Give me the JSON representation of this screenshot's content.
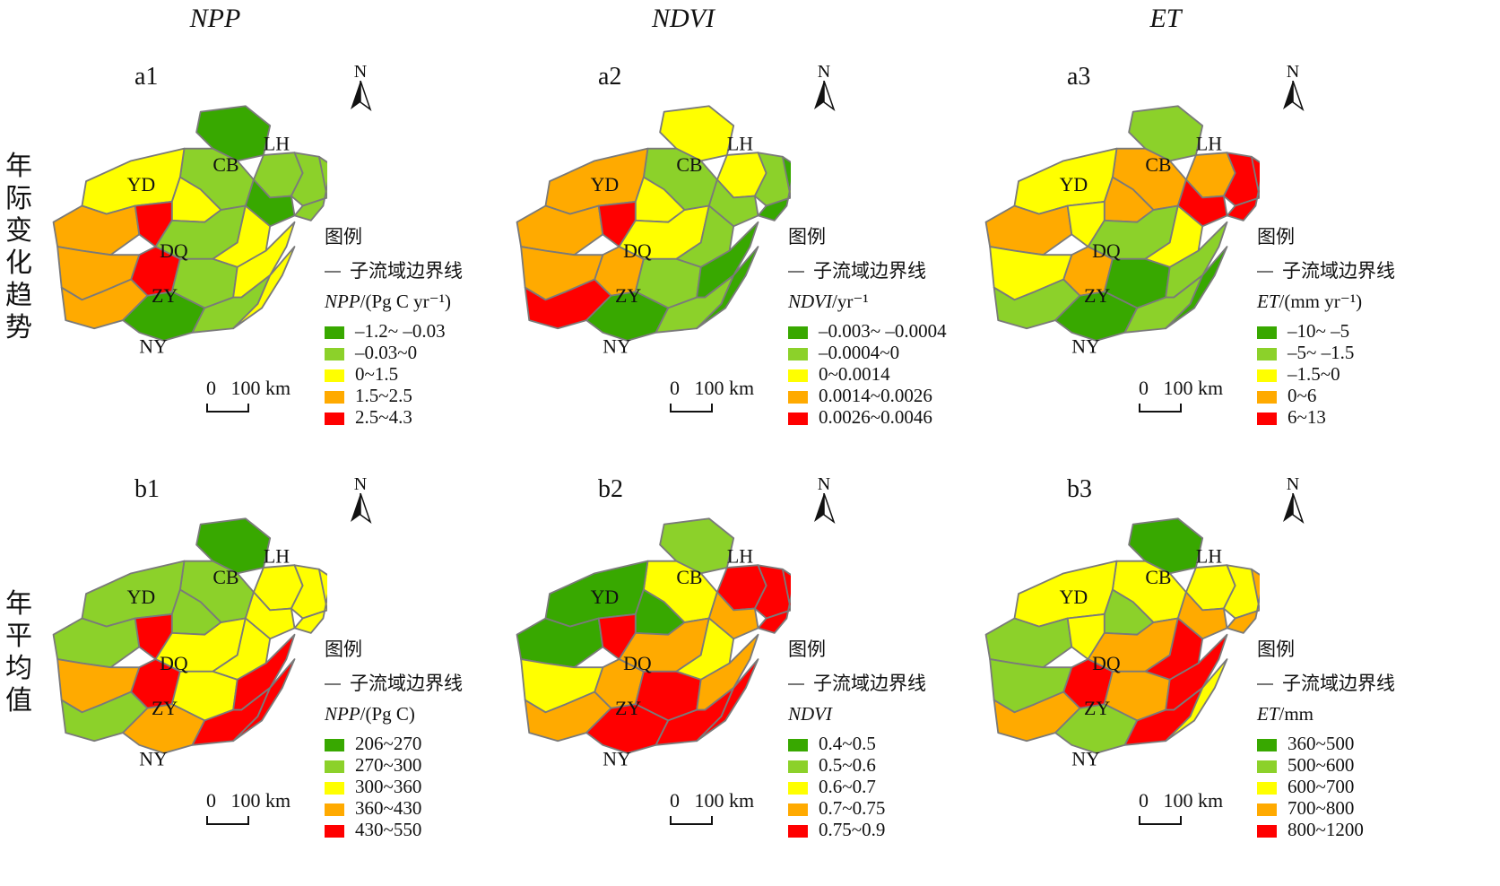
{
  "columns": [
    "NPP",
    "NDVI",
    "ET"
  ],
  "rows": [
    "年际变化趋势",
    "年平均值"
  ],
  "region_codes": [
    "LH",
    "CB",
    "YD",
    "DQ",
    "ZY",
    "NY"
  ],
  "north_label": "N",
  "scale_label": "0   100 km",
  "legend_title": "图例",
  "boundary_label": "子流域边界线",
  "colors": {
    "c1": "#38a800",
    "c2": "#8cd12a",
    "c3": "#ffff00",
    "c4": "#ffaa00",
    "c5": "#ff0000",
    "boundary": "#7a7a7a"
  },
  "panels": [
    {
      "id": "a1",
      "unit_var": "NPP",
      "unit_rest": "/(Pg C yr⁻¹)",
      "classes": [
        "–1.2~ –0.03",
        "–0.03~0",
        "0~1.5",
        "1.5~2.5",
        "2.5~4.3"
      ]
    },
    {
      "id": "a2",
      "unit_var": "NDVI",
      "unit_rest": "/yr⁻¹",
      "classes": [
        "–0.003~ –0.0004",
        "–0.0004~0",
        "0~0.0014",
        "0.0014~0.0026",
        "0.0026~0.0046"
      ]
    },
    {
      "id": "a3",
      "unit_var": "ET",
      "unit_rest": "/(mm yr⁻¹)",
      "classes": [
        "–10~ –5",
        "–5~ –1.5",
        "–1.5~0",
        "0~6",
        "6~13"
      ]
    },
    {
      "id": "b1",
      "unit_var": "NPP",
      "unit_rest": "/(Pg C)",
      "classes": [
        "206~270",
        "270~300",
        "300~360",
        "360~430",
        "430~550"
      ]
    },
    {
      "id": "b2",
      "unit_var": "NDVI",
      "unit_rest": "",
      "classes": [
        "0.4~0.5",
        "0.5~0.6",
        "0.6~0.7",
        "0.7~0.75",
        "0.75~0.9"
      ]
    },
    {
      "id": "b3",
      "unit_var": "ET",
      "unit_rest": "/mm",
      "classes": [
        "360~500",
        "500~600",
        "600~700",
        "700~800",
        "800~1200"
      ]
    }
  ]
}
